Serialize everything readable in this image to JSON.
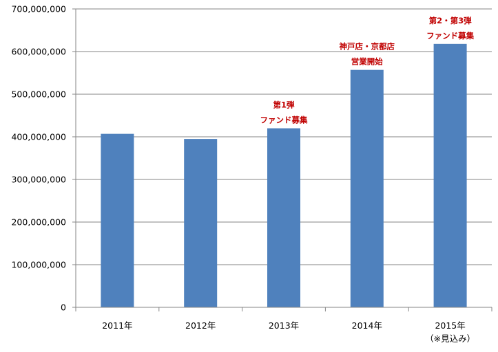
{
  "chart_data": {
    "type": "bar",
    "title": "",
    "xlabel": "",
    "ylabel": "",
    "categories": [
      [
        "2011年"
      ],
      [
        "2012年"
      ],
      [
        "2013年"
      ],
      [
        "2014年"
      ],
      [
        "2015年",
        "（※見込み）"
      ]
    ],
    "values": [
      407000000,
      395000000,
      420000000,
      557000000,
      618000000
    ],
    "ylim": [
      0,
      700000000
    ],
    "yticks": [
      "0",
      "100,000,000",
      "200,000,000",
      "300,000,000",
      "400,000,000",
      "500,000,000",
      "600,000,000",
      "700,000,000"
    ],
    "grid": true,
    "legend": "none",
    "bar_color": "#4f81bd",
    "annotations": [
      {
        "category_index": 2,
        "lines": [
          "第1弾",
          "ファンド募集"
        ]
      },
      {
        "category_index": 3,
        "lines": [
          "神戸店・京都店",
          "営業開始"
        ]
      },
      {
        "category_index": 4,
        "lines": [
          "第2・第3弾",
          "ファンド募集"
        ]
      }
    ],
    "annotation_color": "#c00000"
  }
}
